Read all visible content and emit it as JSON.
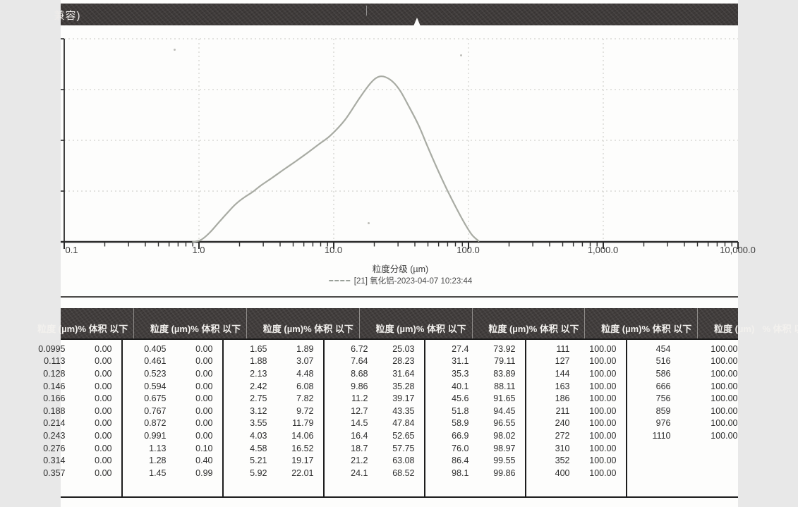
{
  "titlebar": {
    "title_fragment": "兼容)"
  },
  "chart_data": {
    "type": "line",
    "title": "",
    "xlabel": "粒度分级 (µm)",
    "ylabel": "",
    "x_scale": "log",
    "x_range": [
      0.1,
      10000
    ],
    "x_ticks": [
      "0.1",
      "1.0",
      "10.0",
      "100.0",
      "1,000.0",
      "10,000.0"
    ],
    "grid": true,
    "legend": [
      {
        "label": "[21] 氧化铝-2023-04-07 10:23:44",
        "color": "#a8aba3"
      }
    ],
    "series": [
      {
        "name": "[21] 氧化铝-2023-04-07 10:23:44",
        "points_um_vs_relative_height_pct": [
          [
            0.9,
            0
          ],
          [
            0.96,
            0.3
          ],
          [
            1.05,
            1.2
          ],
          [
            1.2,
            4.5
          ],
          [
            1.4,
            9.5
          ],
          [
            1.6,
            13.8
          ],
          [
            1.8,
            17.5
          ],
          [
            2.0,
            20.2
          ],
          [
            2.2,
            22.2
          ],
          [
            2.5,
            24.6
          ],
          [
            2.9,
            27.9
          ],
          [
            3.5,
            31.6
          ],
          [
            4.3,
            35.8
          ],
          [
            5.2,
            39.6
          ],
          [
            6.4,
            43.9
          ],
          [
            7.8,
            48.2
          ],
          [
            9.5,
            52.5
          ],
          [
            12.1,
            60.0
          ],
          [
            15.4,
            70.4
          ],
          [
            18.9,
            78.4
          ],
          [
            22.1,
            81.5
          ],
          [
            26.2,
            79.9
          ],
          [
            30.7,
            75.0
          ],
          [
            35.9,
            67.0
          ],
          [
            42.5,
            57.6
          ],
          [
            49.5,
            47.2
          ],
          [
            57.9,
            36.8
          ],
          [
            68.5,
            26.4
          ],
          [
            80.1,
            17.4
          ],
          [
            93.8,
            9.0
          ],
          [
            106,
            3.5
          ],
          [
            119,
            0.4
          ]
        ]
      }
    ]
  },
  "table": {
    "size_header": "粒度 (µm)",
    "pct_header": "% 体积 以下",
    "groups": [
      {
        "rows": [
          [
            "0.0995",
            "0.00"
          ],
          [
            "0.113",
            "0.00"
          ],
          [
            "0.128",
            "0.00"
          ],
          [
            "0.146",
            "0.00"
          ],
          [
            "0.166",
            "0.00"
          ],
          [
            "0.188",
            "0.00"
          ],
          [
            "0.214",
            "0.00"
          ],
          [
            "0.243",
            "0.00"
          ],
          [
            "0.276",
            "0.00"
          ],
          [
            "0.314",
            "0.00"
          ],
          [
            "0.357",
            "0.00"
          ]
        ]
      },
      {
        "rows": [
          [
            "0.405",
            "0.00"
          ],
          [
            "0.461",
            "0.00"
          ],
          [
            "0.523",
            "0.00"
          ],
          [
            "0.594",
            "0.00"
          ],
          [
            "0.675",
            "0.00"
          ],
          [
            "0.767",
            "0.00"
          ],
          [
            "0.872",
            "0.00"
          ],
          [
            "0.991",
            "0.00"
          ],
          [
            "1.13",
            "0.10"
          ],
          [
            "1.28",
            "0.40"
          ],
          [
            "1.45",
            "0.99"
          ]
        ]
      },
      {
        "rows": [
          [
            "1.65",
            "1.89"
          ],
          [
            "1.88",
            "3.07"
          ],
          [
            "2.13",
            "4.48"
          ],
          [
            "2.42",
            "6.08"
          ],
          [
            "2.75",
            "7.82"
          ],
          [
            "3.12",
            "9.72"
          ],
          [
            "3.55",
            "11.79"
          ],
          [
            "4.03",
            "14.06"
          ],
          [
            "4.58",
            "16.52"
          ],
          [
            "5.21",
            "19.17"
          ],
          [
            "5.92",
            "22.01"
          ]
        ]
      },
      {
        "rows": [
          [
            "6.72",
            "25.03"
          ],
          [
            "7.64",
            "28.23"
          ],
          [
            "8.68",
            "31.64"
          ],
          [
            "9.86",
            "35.28"
          ],
          [
            "11.2",
            "39.17"
          ],
          [
            "12.7",
            "43.35"
          ],
          [
            "14.5",
            "47.84"
          ],
          [
            "16.4",
            "52.65"
          ],
          [
            "18.7",
            "57.75"
          ],
          [
            "21.2",
            "63.08"
          ],
          [
            "24.1",
            "68.52"
          ]
        ]
      },
      {
        "rows": [
          [
            "27.4",
            "73.92"
          ],
          [
            "31.1",
            "79.11"
          ],
          [
            "35.3",
            "83.89"
          ],
          [
            "40.1",
            "88.11"
          ],
          [
            "45.6",
            "91.65"
          ],
          [
            "51.8",
            "94.45"
          ],
          [
            "58.9",
            "96.55"
          ],
          [
            "66.9",
            "98.02"
          ],
          [
            "76.0",
            "98.97"
          ],
          [
            "86.4",
            "99.55"
          ],
          [
            "98.1",
            "99.86"
          ]
        ]
      },
      {
        "rows": [
          [
            "111",
            "100.00"
          ],
          [
            "127",
            "100.00"
          ],
          [
            "144",
            "100.00"
          ],
          [
            "163",
            "100.00"
          ],
          [
            "186",
            "100.00"
          ],
          [
            "211",
            "100.00"
          ],
          [
            "240",
            "100.00"
          ],
          [
            "272",
            "100.00"
          ],
          [
            "310",
            "100.00"
          ],
          [
            "352",
            "100.00"
          ],
          [
            "400",
            "100.00"
          ]
        ]
      },
      {
        "rows": [
          [
            "454",
            "100.00"
          ],
          [
            "516",
            "100.00"
          ],
          [
            "586",
            "100.00"
          ],
          [
            "666",
            "100.00"
          ],
          [
            "756",
            "100.00"
          ],
          [
            "859",
            "100.00"
          ],
          [
            "976",
            "100.00"
          ],
          [
            "1110",
            "100.00"
          ]
        ]
      }
    ]
  }
}
